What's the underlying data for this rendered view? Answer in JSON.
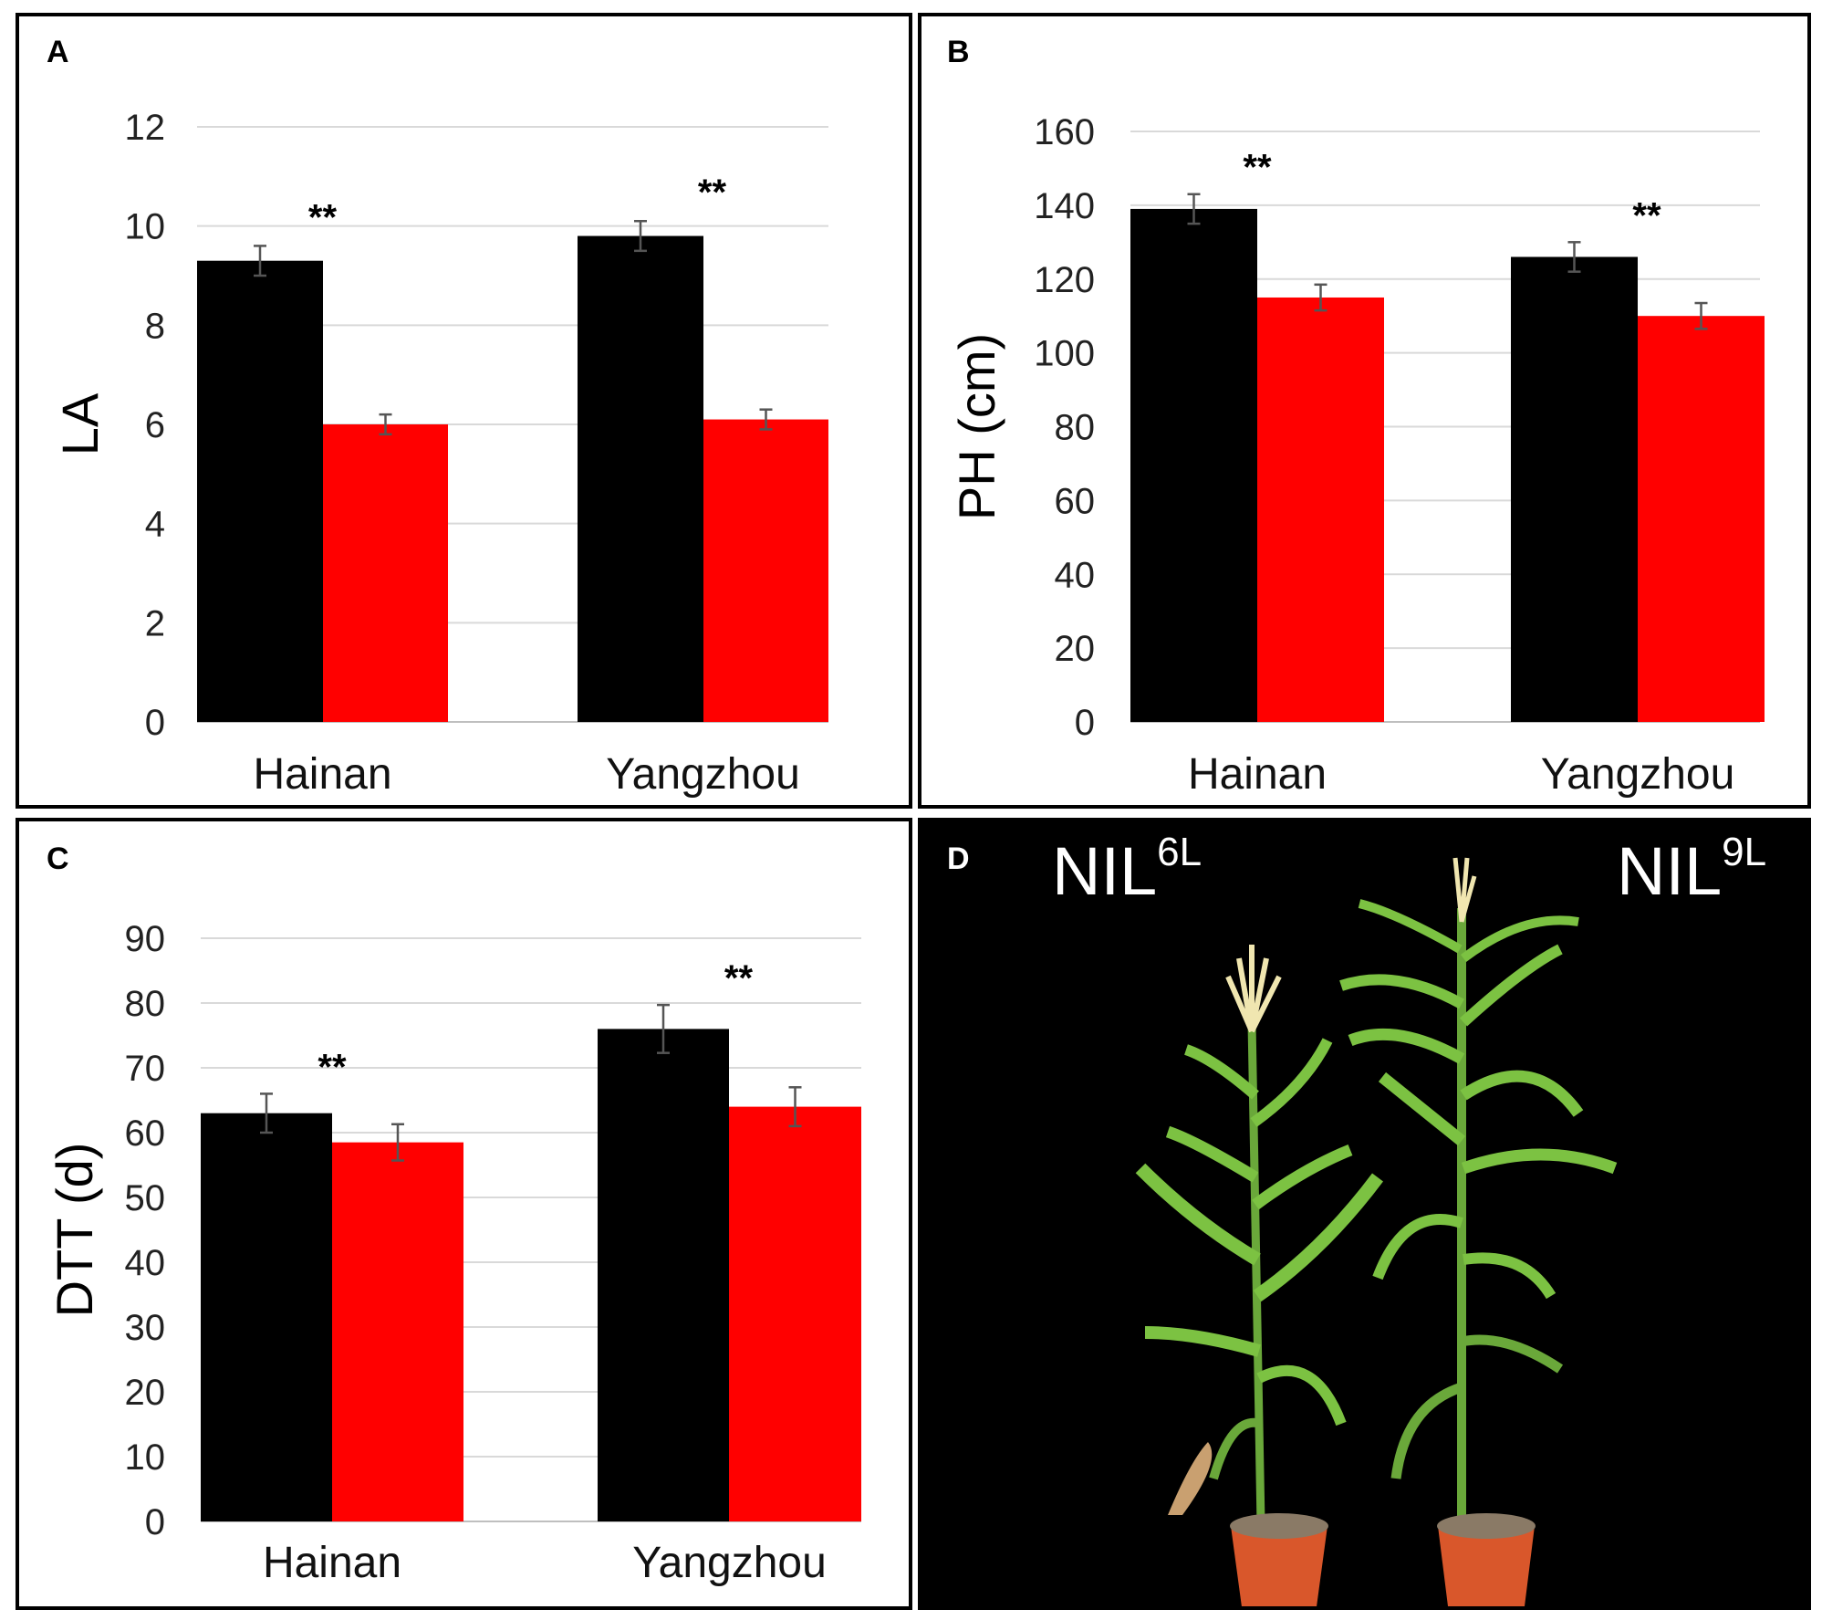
{
  "colors": {
    "series1": "#000000",
    "series2": "#ff0000",
    "grid": "#d9d9d9",
    "error": "#555555"
  },
  "panel_letters": {
    "a": "A",
    "b": "B",
    "c": "C",
    "d": "D"
  },
  "chart_data": [
    {
      "id": "A",
      "type": "bar",
      "title": "",
      "xlabel": "",
      "ylabel": "LA",
      "categories": [
        "Hainan",
        "Yangzhou"
      ],
      "ylim": [
        0,
        12
      ],
      "yticks": [
        "0",
        "2",
        "4",
        "6",
        "8",
        "10",
        "12"
      ],
      "ytick_values": [
        0,
        2,
        4,
        6,
        8,
        10,
        12
      ],
      "grid": true,
      "series": [
        {
          "name": "NIL6L",
          "color": "#000000",
          "values": [
            9.3,
            9.8
          ],
          "errors": [
            0.3,
            0.3
          ]
        },
        {
          "name": "NIL9L",
          "color": "#ff0000",
          "values": [
            6.0,
            6.1
          ],
          "errors": [
            0.2,
            0.2
          ]
        }
      ],
      "annotations": [
        "**",
        "**"
      ]
    },
    {
      "id": "B",
      "type": "bar",
      "title": "",
      "xlabel": "",
      "ylabel": "PH (cm)",
      "categories": [
        "Hainan",
        "Yangzhou"
      ],
      "ylim": [
        0,
        160
      ],
      "yticks": [
        "0",
        "20",
        "40",
        "60",
        "80",
        "100",
        "120",
        "140",
        "160"
      ],
      "ytick_values": [
        0,
        20,
        40,
        60,
        80,
        100,
        120,
        140,
        160
      ],
      "grid": true,
      "series": [
        {
          "name": "NIL6L",
          "color": "#000000",
          "values": [
            139,
            126
          ],
          "errors": [
            4,
            4
          ]
        },
        {
          "name": "NIL9L",
          "color": "#ff0000",
          "values": [
            115,
            110
          ],
          "errors": [
            3.5,
            3.5
          ]
        }
      ],
      "annotations": [
        "**",
        "**"
      ]
    },
    {
      "id": "C",
      "type": "bar",
      "title": "",
      "xlabel": "",
      "ylabel": "DTT (d)",
      "categories": [
        "Hainan",
        "Yangzhou"
      ],
      "ylim": [
        0,
        90
      ],
      "yticks": [
        "0",
        "10",
        "20",
        "30",
        "40",
        "50",
        "60",
        "70",
        "80",
        "90"
      ],
      "ytick_values": [
        0,
        10,
        20,
        30,
        40,
        50,
        60,
        70,
        80,
        90
      ],
      "grid": true,
      "series": [
        {
          "name": "NIL6L",
          "color": "#000000",
          "values": [
            63,
            76
          ],
          "errors": [
            3,
            3.7
          ]
        },
        {
          "name": "NIL9L",
          "color": "#ff0000",
          "values": [
            58.5,
            64
          ],
          "errors": [
            2.8,
            3
          ]
        }
      ],
      "annotations": [
        "**",
        "**"
      ]
    }
  ],
  "photo": {
    "left_label": {
      "main": "NIL",
      "sup": "6L"
    },
    "right_label": {
      "main": "NIL",
      "sup": "9L"
    },
    "colors": {
      "background": "#000000",
      "leaf": "#7cc242",
      "leaf_dark": "#4e8a26",
      "tassel": "#f0e6b0",
      "pot": "#d9572b",
      "soil": "#8a7a66"
    }
  }
}
